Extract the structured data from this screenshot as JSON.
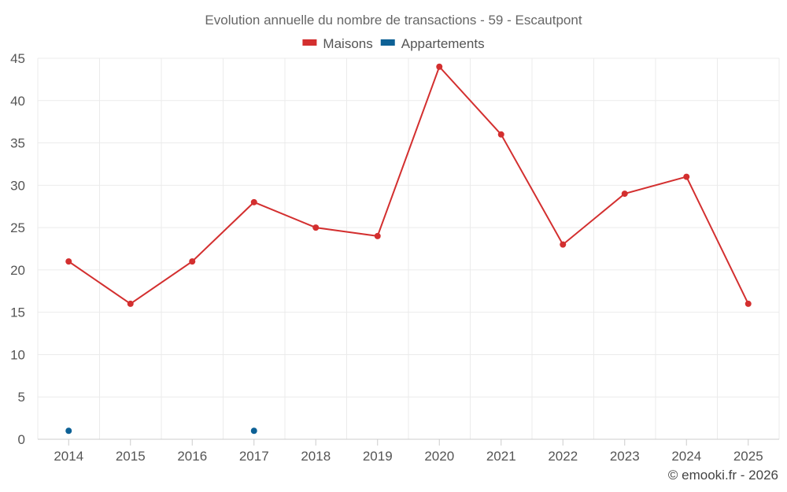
{
  "chart_data": {
    "type": "line",
    "title": "Evolution annuelle du nombre de transactions - 59 - Escautpont",
    "categories": [
      "2014",
      "2015",
      "2016",
      "2017",
      "2018",
      "2019",
      "2020",
      "2021",
      "2022",
      "2023",
      "2024",
      "2025"
    ],
    "series": [
      {
        "name": "Maisons",
        "color": "#d32f2f",
        "values": [
          21,
          16,
          21,
          28,
          25,
          24,
          44,
          36,
          23,
          29,
          31,
          16
        ]
      },
      {
        "name": "Appartements",
        "color": "#0d6196",
        "values": [
          1,
          null,
          null,
          1,
          null,
          null,
          null,
          null,
          null,
          null,
          null,
          null
        ]
      }
    ],
    "ylim": [
      0,
      45
    ],
    "yticks": [
      0,
      5,
      10,
      15,
      20,
      25,
      30,
      35,
      40,
      45
    ],
    "xlabel": "",
    "ylabel": "",
    "grid": true,
    "legend_position": "top-center"
  },
  "footer": {
    "copyright": "© emooki.fr - 2026"
  }
}
